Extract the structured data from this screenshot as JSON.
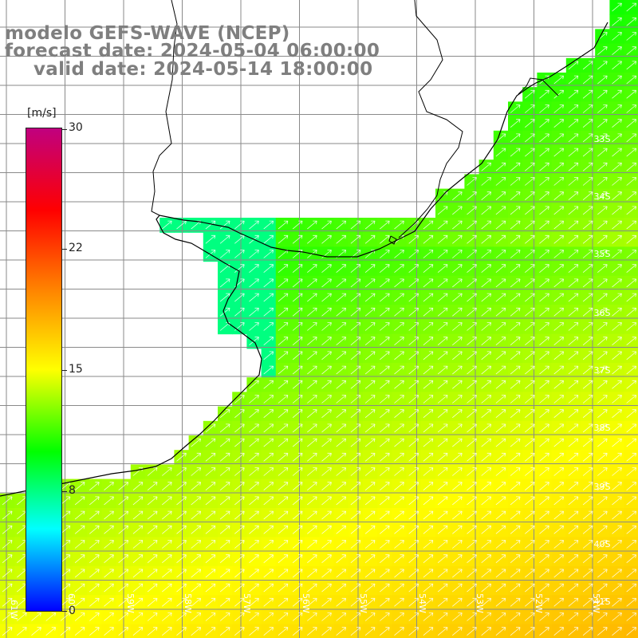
{
  "header": {
    "model_line": "modelo GEFS-WAVE (NCEP)",
    "forecast_line": "forecast date: 2024-05-04 06:00:00",
    "valid_line": "valid date: 2024-05-14 18:00:00"
  },
  "colorbar": {
    "unit": "[m/s]",
    "ticks": [
      "30",
      "22",
      "15",
      "8",
      "0"
    ],
    "colors": [
      "#0000ff",
      "#00ffff",
      "#00ff00",
      "#ffff00",
      "#ff8000",
      "#ff0000",
      "#c0007f"
    ]
  },
  "axes": {
    "lat_labels": [
      "33S",
      "34S",
      "35S",
      "36S",
      "37S",
      "38S",
      "39S",
      "40S",
      "41S"
    ],
    "lon_labels": [
      "61W",
      "60W",
      "59W",
      "58W",
      "57W",
      "56W",
      "55W",
      "54W",
      "53W",
      "52W",
      "51W"
    ]
  },
  "map": {
    "land_color": "#ffffff",
    "coast_color": "#000000",
    "grid_color": "#8a8a8a"
  }
}
